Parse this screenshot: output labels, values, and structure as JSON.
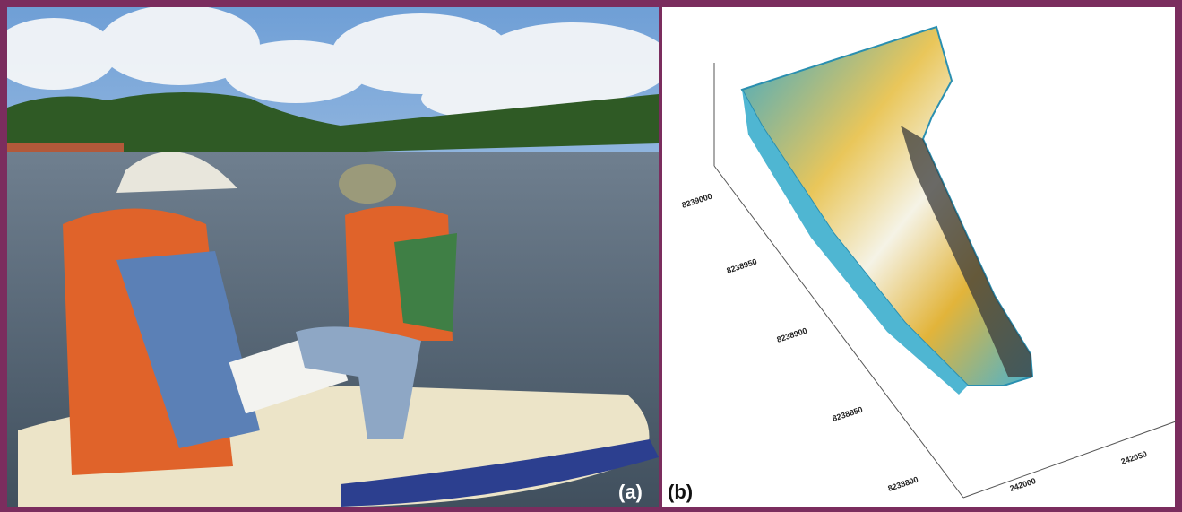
{
  "panels": [
    {
      "label": "(a)"
    },
    {
      "label": "(b)",
      "northing_ticks": [
        "8239000",
        "8238950",
        "8238900",
        "8238850",
        "8238800"
      ],
      "easting_ticks": [
        "242000",
        "242050"
      ]
    }
  ]
}
